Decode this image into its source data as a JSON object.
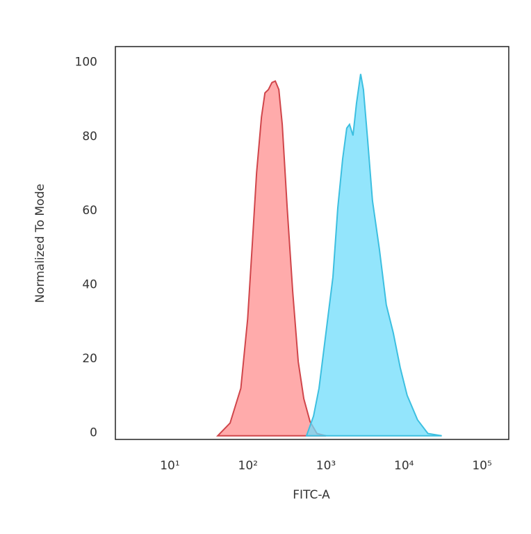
{
  "chart_data": {
    "type": "histogram-overlay",
    "xlabel": "FITC-A",
    "ylabel": "Normalized To Mode",
    "xscale": "log",
    "xlim": [
      2,
      220000
    ],
    "ylim": [
      -1,
      105
    ],
    "xticks": [
      {
        "value": 10,
        "label": "10¹"
      },
      {
        "value": 100,
        "label": "10²"
      },
      {
        "value": 1000,
        "label": "10³"
      },
      {
        "value": 10000,
        "label": "10⁴"
      },
      {
        "value": 100000,
        "label": "10⁵"
      }
    ],
    "yticks": [
      0,
      20,
      40,
      60,
      80,
      100
    ],
    "series": [
      {
        "color": "#d0454a",
        "fill": "#ff8f8f",
        "x": [
          41,
          59,
          81,
          99,
          114,
          129,
          149,
          165,
          183,
          203,
          224,
          249,
          275,
          318,
          374,
          441,
          520,
          625,
          766,
          1000
        ],
        "values": [
          0,
          3.4,
          12.8,
          31.5,
          52,
          71,
          86,
          92.5,
          93.4,
          95.3,
          95.7,
          93.4,
          84,
          61.5,
          39,
          20,
          10,
          3.8,
          0.6,
          0
        ]
      },
      {
        "color": "#3cbfe0",
        "fill": "#6fdcfb",
        "x": [
          563,
          692,
          815,
          1000,
          1227,
          1416,
          1634,
          1847,
          2005,
          2222,
          2461,
          2781,
          3020,
          3415,
          3942,
          4835,
          5929,
          7278,
          8933,
          10970,
          14900,
          20260,
          30470
        ],
        "values": [
          0,
          5.3,
          12.8,
          27.8,
          42.8,
          61.5,
          74.7,
          83,
          84,
          81,
          89.7,
          97.6,
          93.4,
          80,
          63.4,
          50.3,
          35.3,
          27.8,
          18.4,
          10.9,
          4.3,
          0.6,
          0
        ]
      }
    ]
  }
}
